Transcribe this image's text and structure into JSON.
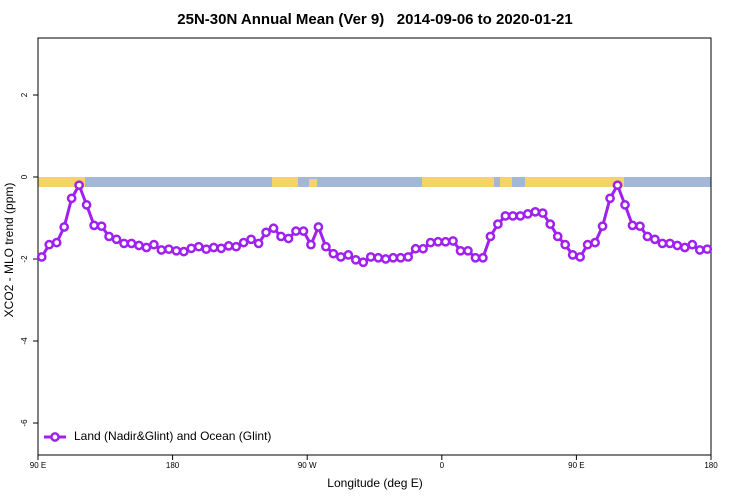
{
  "chart_data": {
    "type": "line",
    "title": "25N-30N Annual Mean (Ver 9)   2014-09-06 to 2020-01-21",
    "x_label": "Longitude (deg E)",
    "y_label": "XCO2 - MLO trend (ppm)",
    "x": [
      92.5,
      97.5,
      102.5,
      107.5,
      112.5,
      117.5,
      122.5,
      127.5,
      132.5,
      137.5,
      142.5,
      147.5,
      152.5,
      157.5,
      162.5,
      167.5,
      172.5,
      177.5,
      182.5,
      187.5,
      192.5,
      197.5,
      202.5,
      207.5,
      212.5,
      217.5,
      222.5,
      227.5,
      232.5,
      237.5,
      242.5,
      247.5,
      252.5,
      257.5,
      262.5,
      267.5,
      272.5,
      277.5,
      282.5,
      287.5,
      292.5,
      297.5,
      302.5,
      307.5,
      312.5,
      317.5,
      322.5,
      327.5,
      332.5,
      337.5,
      342.5,
      347.5,
      352.5,
      357.5,
      362.5,
      367.5,
      372.5,
      377.5,
      382.5,
      387.5,
      392.5,
      397.5,
      402.5,
      407.5,
      412.5,
      417.5,
      422.5,
      427.5,
      432.5,
      437.5,
      442.5,
      447.5,
      452.5,
      457.5,
      462.5,
      467.5,
      472.5,
      477.5,
      482.5,
      487.5,
      492.5,
      497.5,
      502.5,
      507.5,
      512.5,
      517.5,
      522.5,
      527.5,
      532.5,
      537.5
    ],
    "series": [
      {
        "name": "Land (Nadir&Glint) and Ocean (Glint)",
        "color": "#a020f0",
        "values": [
          -1.95,
          -1.65,
          -1.6,
          -1.22,
          -0.52,
          -0.2,
          -0.68,
          -1.18,
          -1.2,
          -1.45,
          -1.52,
          -1.62,
          -1.62,
          -1.67,
          -1.72,
          -1.65,
          -1.78,
          -1.76,
          -1.8,
          -1.82,
          -1.74,
          -1.7,
          -1.76,
          -1.72,
          -1.74,
          -1.68,
          -1.7,
          -1.6,
          -1.52,
          -1.62,
          -1.35,
          -1.25,
          -1.45,
          -1.5,
          -1.32,
          -1.32,
          -1.65,
          -1.22,
          -1.7,
          -1.87,
          -1.95,
          -1.9,
          -2.02,
          -2.08,
          -1.95,
          -1.97,
          -2.0,
          -1.97,
          -1.97,
          -1.95,
          -1.75,
          -1.75,
          -1.6,
          -1.58,
          -1.58,
          -1.56,
          -1.8,
          -1.8,
          -1.97,
          -1.97,
          -1.45,
          -1.15,
          -0.95,
          -0.95,
          -0.95,
          -0.9,
          -0.85,
          -0.88,
          -1.15,
          -1.45,
          -1.65,
          -1.9,
          -1.95,
          -1.65,
          -1.6,
          -1.2,
          -0.52,
          -0.2,
          -0.68,
          -1.18,
          -1.2,
          -1.45,
          -1.52,
          -1.62,
          -1.62,
          -1.67,
          -1.72,
          -1.65,
          -1.78,
          -1.76
        ]
      }
    ],
    "xlim": [
      90,
      540
    ],
    "xticks": [
      {
        "value": 90,
        "label": "90 E"
      },
      180,
      {
        "value": 270,
        "label": "90 W"
      },
      {
        "value": 360,
        "label": "0"
      },
      {
        "value": 450,
        "label": "90 E"
      },
      {
        "value": 540,
        "label": "180"
      }
    ],
    "ylim": [
      -6.78,
      3.39
    ],
    "yticks": [
      -6,
      -4,
      -2,
      0,
      2
    ],
    "legend": "bottom-left"
  }
}
